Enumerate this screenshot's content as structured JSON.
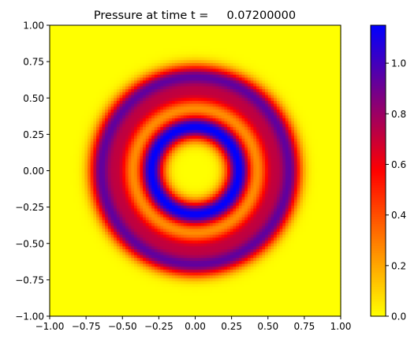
{
  "chart_data": {
    "type": "heatmap",
    "title": "Pressure at time t =     0.07200000",
    "xlabel": "",
    "ylabel": "",
    "xlim": [
      -1.0,
      1.0
    ],
    "ylim": [
      -1.0,
      1.0
    ],
    "x_tick_labels": [
      "−1.00",
      "−0.75",
      "−0.50",
      "−0.25",
      "0.00",
      "0.25",
      "0.50",
      "0.75",
      "1.00"
    ],
    "x_tick_values": [
      -1.0,
      -0.75,
      -0.5,
      -0.25,
      0.0,
      0.25,
      0.5,
      0.75,
      1.0
    ],
    "y_tick_labels": [
      "−1.00",
      "−0.75",
      "−0.50",
      "−0.25",
      "0.00",
      "0.25",
      "0.50",
      "0.75",
      "1.00"
    ],
    "y_tick_values": [
      -1.0,
      -0.75,
      -0.5,
      -0.25,
      0.0,
      0.25,
      0.5,
      0.75,
      1.0
    ],
    "grid": false,
    "colormap": {
      "stops": [
        "#ffff00",
        "#ff0000",
        "#0000ff"
      ],
      "vmin": 0.0,
      "vmax": 1.15
    },
    "colorbar": {
      "tick_labels": [
        "0.0",
        "0.2",
        "0.4",
        "0.6",
        "0.8",
        "1.0"
      ],
      "tick_values": [
        0.0,
        0.2,
        0.4,
        0.6,
        0.8,
        1.0
      ]
    },
    "grid_resolution": 100,
    "field_profile": {
      "description_of_value": "radially symmetric rings",
      "rings": [
        {
          "radius": 0.3,
          "width": 0.085,
          "amplitude": 1.15
        },
        {
          "radius": 0.52,
          "width": 0.075,
          "amplitude": 0.62
        },
        {
          "radius": 0.65,
          "width": 0.08,
          "amplitude": 0.9
        }
      ]
    }
  }
}
